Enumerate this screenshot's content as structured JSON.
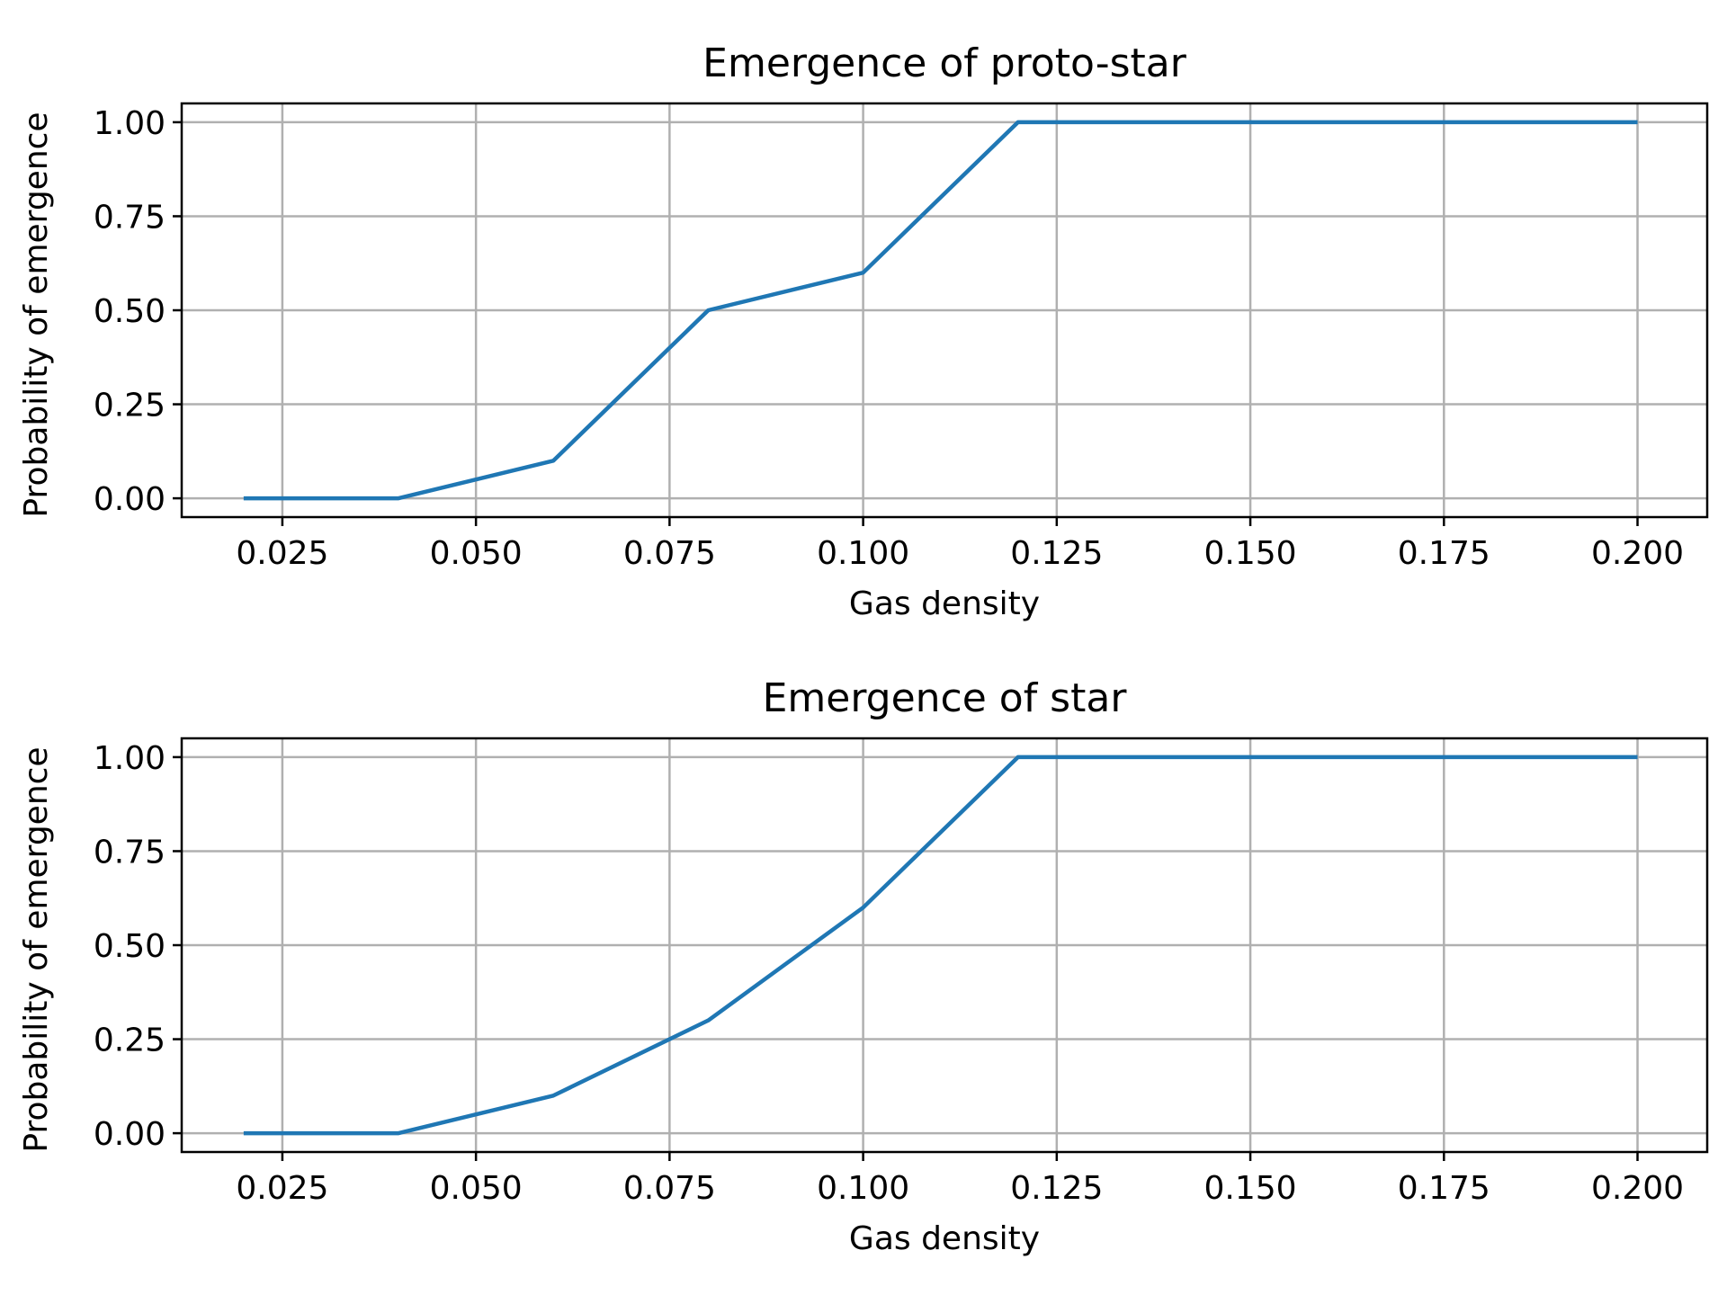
{
  "chart_data": [
    {
      "type": "line",
      "title": "Emergence of proto-star",
      "xlabel": "Gas density",
      "ylabel": "Probability of emergence",
      "xlim": [
        0.012,
        0.209
      ],
      "ylim": [
        -0.05,
        1.05
      ],
      "xticks": [
        "0.025",
        "0.050",
        "0.075",
        "0.100",
        "0.125",
        "0.150",
        "0.175",
        "0.200"
      ],
      "yticks": [
        "0.00",
        "0.25",
        "0.50",
        "0.75",
        "1.00"
      ],
      "grid": true,
      "color": "#1f77b4",
      "x": [
        0.02,
        0.04,
        0.06,
        0.08,
        0.1,
        0.12,
        0.14,
        0.16,
        0.18,
        0.2
      ],
      "y": [
        0.0,
        0.0,
        0.1,
        0.5,
        0.6,
        1.0,
        1.0,
        1.0,
        1.0,
        1.0
      ]
    },
    {
      "type": "line",
      "title": "Emergence of star",
      "xlabel": "Gas density",
      "ylabel": "Probability of emergence",
      "xlim": [
        0.012,
        0.209
      ],
      "ylim": [
        -0.05,
        1.05
      ],
      "xticks": [
        "0.025",
        "0.050",
        "0.075",
        "0.100",
        "0.125",
        "0.150",
        "0.175",
        "0.200"
      ],
      "yticks": [
        "0.00",
        "0.25",
        "0.50",
        "0.75",
        "1.00"
      ],
      "grid": true,
      "color": "#1f77b4",
      "x": [
        0.02,
        0.04,
        0.06,
        0.08,
        0.1,
        0.12,
        0.14,
        0.16,
        0.18,
        0.2
      ],
      "y": [
        0.0,
        0.0,
        0.1,
        0.3,
        0.6,
        1.0,
        1.0,
        1.0,
        1.0,
        1.0
      ]
    }
  ]
}
